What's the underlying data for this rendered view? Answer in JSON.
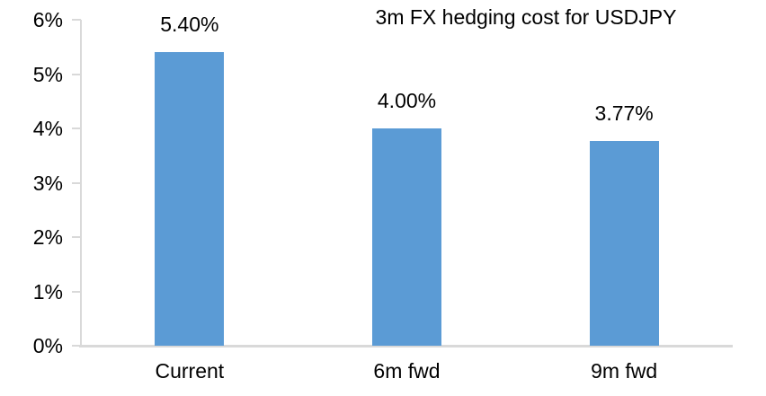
{
  "chart_data": {
    "type": "bar",
    "title": "3m FX hedging cost for USDJPY",
    "categories": [
      "Current",
      "6m fwd",
      "9m fwd"
    ],
    "values": [
      5.4,
      4.0,
      3.77
    ],
    "data_labels": [
      "5.40%",
      "4.00%",
      "3.77%"
    ],
    "xlabel": "",
    "ylabel": "",
    "ylim": [
      0,
      6
    ],
    "ytick_values": [
      0,
      1,
      2,
      3,
      4,
      5,
      6
    ],
    "ytick_labels": [
      "0%",
      "1%",
      "2%",
      "3%",
      "4%",
      "5%",
      "6%"
    ],
    "grid": false,
    "legend_position": "none",
    "bar_color": "#5B9BD5",
    "axis_color": "#D9D9D9",
    "text_color": "#000000",
    "background_color": "#FFFFFF"
  }
}
